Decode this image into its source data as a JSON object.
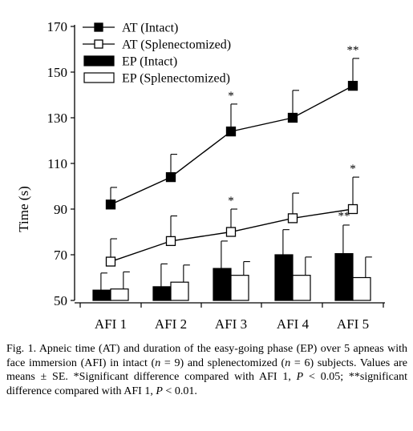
{
  "chart_data": {
    "type": "bar",
    "categories": [
      "AFI 1",
      "AFI 2",
      "AFI 3",
      "AFI 4",
      "AFI 5"
    ],
    "ylabel": "Time (s)",
    "xlabel": "",
    "ylim": [
      50,
      170
    ],
    "yticks": [
      50,
      70,
      90,
      110,
      130,
      150,
      170
    ],
    "grid": false,
    "legend_position": "top-left",
    "legend": [
      "AT (Intact)",
      "AT (Splenectomized)",
      "EP (Intact)",
      "EP (Splenectomized)"
    ],
    "line_series": [
      {
        "name": "AT (Intact)",
        "marker": "filled-square",
        "values": [
          92,
          104,
          124,
          130,
          144
        ],
        "se": [
          7.5,
          10,
          12,
          12,
          12
        ],
        "stars": [
          "",
          "",
          "*",
          "",
          "**"
        ]
      },
      {
        "name": "AT (Splenectomized)",
        "marker": "open-square",
        "values": [
          67,
          76,
          80,
          86,
          90
        ],
        "se": [
          10,
          11,
          10,
          11,
          14
        ],
        "stars": [
          "",
          "",
          "*",
          "",
          "*"
        ]
      }
    ],
    "bar_series": [
      {
        "name": "EP (Intact)",
        "fill": "#000000",
        "values": [
          54.5,
          56,
          64,
          70,
          70.5
        ],
        "se": [
          7.5,
          10,
          12,
          11,
          12.5
        ],
        "stars": [
          "",
          "",
          "",
          "",
          "**"
        ]
      },
      {
        "name": "EP (Splenectomized)",
        "fill": "#ffffff",
        "values": [
          55,
          58,
          61,
          61,
          60
        ],
        "se": [
          7.5,
          7.5,
          6,
          8,
          9
        ],
        "stars": [
          "",
          "",
          "",
          "",
          ""
        ]
      }
    ]
  },
  "caption": {
    "fig": "Fig. 1.",
    "text_1": " Apneic time (AT) and duration of the easy-going phase (EP) over 5 apneas with face immersion (AFI) in intact (",
    "n1_var": "n",
    "n1_eq": " = 9) and splenectomized (",
    "n2_var": "n",
    "n2_eq": " = 6) subjects. Values are means ± SE. *Significant difference compared with AFI 1, ",
    "p1_var": "P",
    "p1_eq": " < 0.05; **significant difference compared with AFI 1, ",
    "p2_var": "P",
    "p2_eq": " < 0.01."
  }
}
